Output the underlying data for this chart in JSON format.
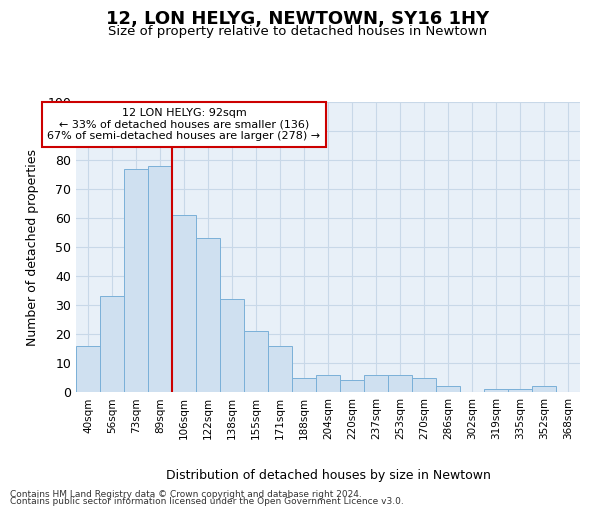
{
  "title": "12, LON HELYG, NEWTOWN, SY16 1HY",
  "subtitle": "Size of property relative to detached houses in Newtown",
  "xlabel": "Distribution of detached houses by size in Newtown",
  "ylabel": "Number of detached properties",
  "categories": [
    "40sqm",
    "56sqm",
    "73sqm",
    "89sqm",
    "106sqm",
    "122sqm",
    "138sqm",
    "155sqm",
    "171sqm",
    "188sqm",
    "204sqm",
    "220sqm",
    "237sqm",
    "253sqm",
    "270sqm",
    "286sqm",
    "302sqm",
    "319sqm",
    "335sqm",
    "352sqm",
    "368sqm"
  ],
  "values": [
    16,
    33,
    77,
    78,
    61,
    53,
    32,
    21,
    16,
    5,
    6,
    4,
    6,
    6,
    5,
    2,
    0,
    1,
    1,
    2,
    0
  ],
  "bar_color": "#cfe0f0",
  "bar_edge_color": "#7ab0d8",
  "property_label": "12 LON HELYG: 92sqm",
  "pct_smaller": 33,
  "n_smaller": 136,
  "pct_larger_semi": 67,
  "n_larger_semi": 278,
  "vline_x_index": 3.5,
  "ylim": [
    0,
    100
  ],
  "grid_color": "#c8d8e8",
  "background_color": "#e8f0f8",
  "footer1": "Contains HM Land Registry data © Crown copyright and database right 2024.",
  "footer2": "Contains public sector information licensed under the Open Government Licence v3.0.",
  "annotation_box_color": "#ffffff",
  "annotation_box_edge": "#cc0000",
  "vline_color": "#cc0000"
}
